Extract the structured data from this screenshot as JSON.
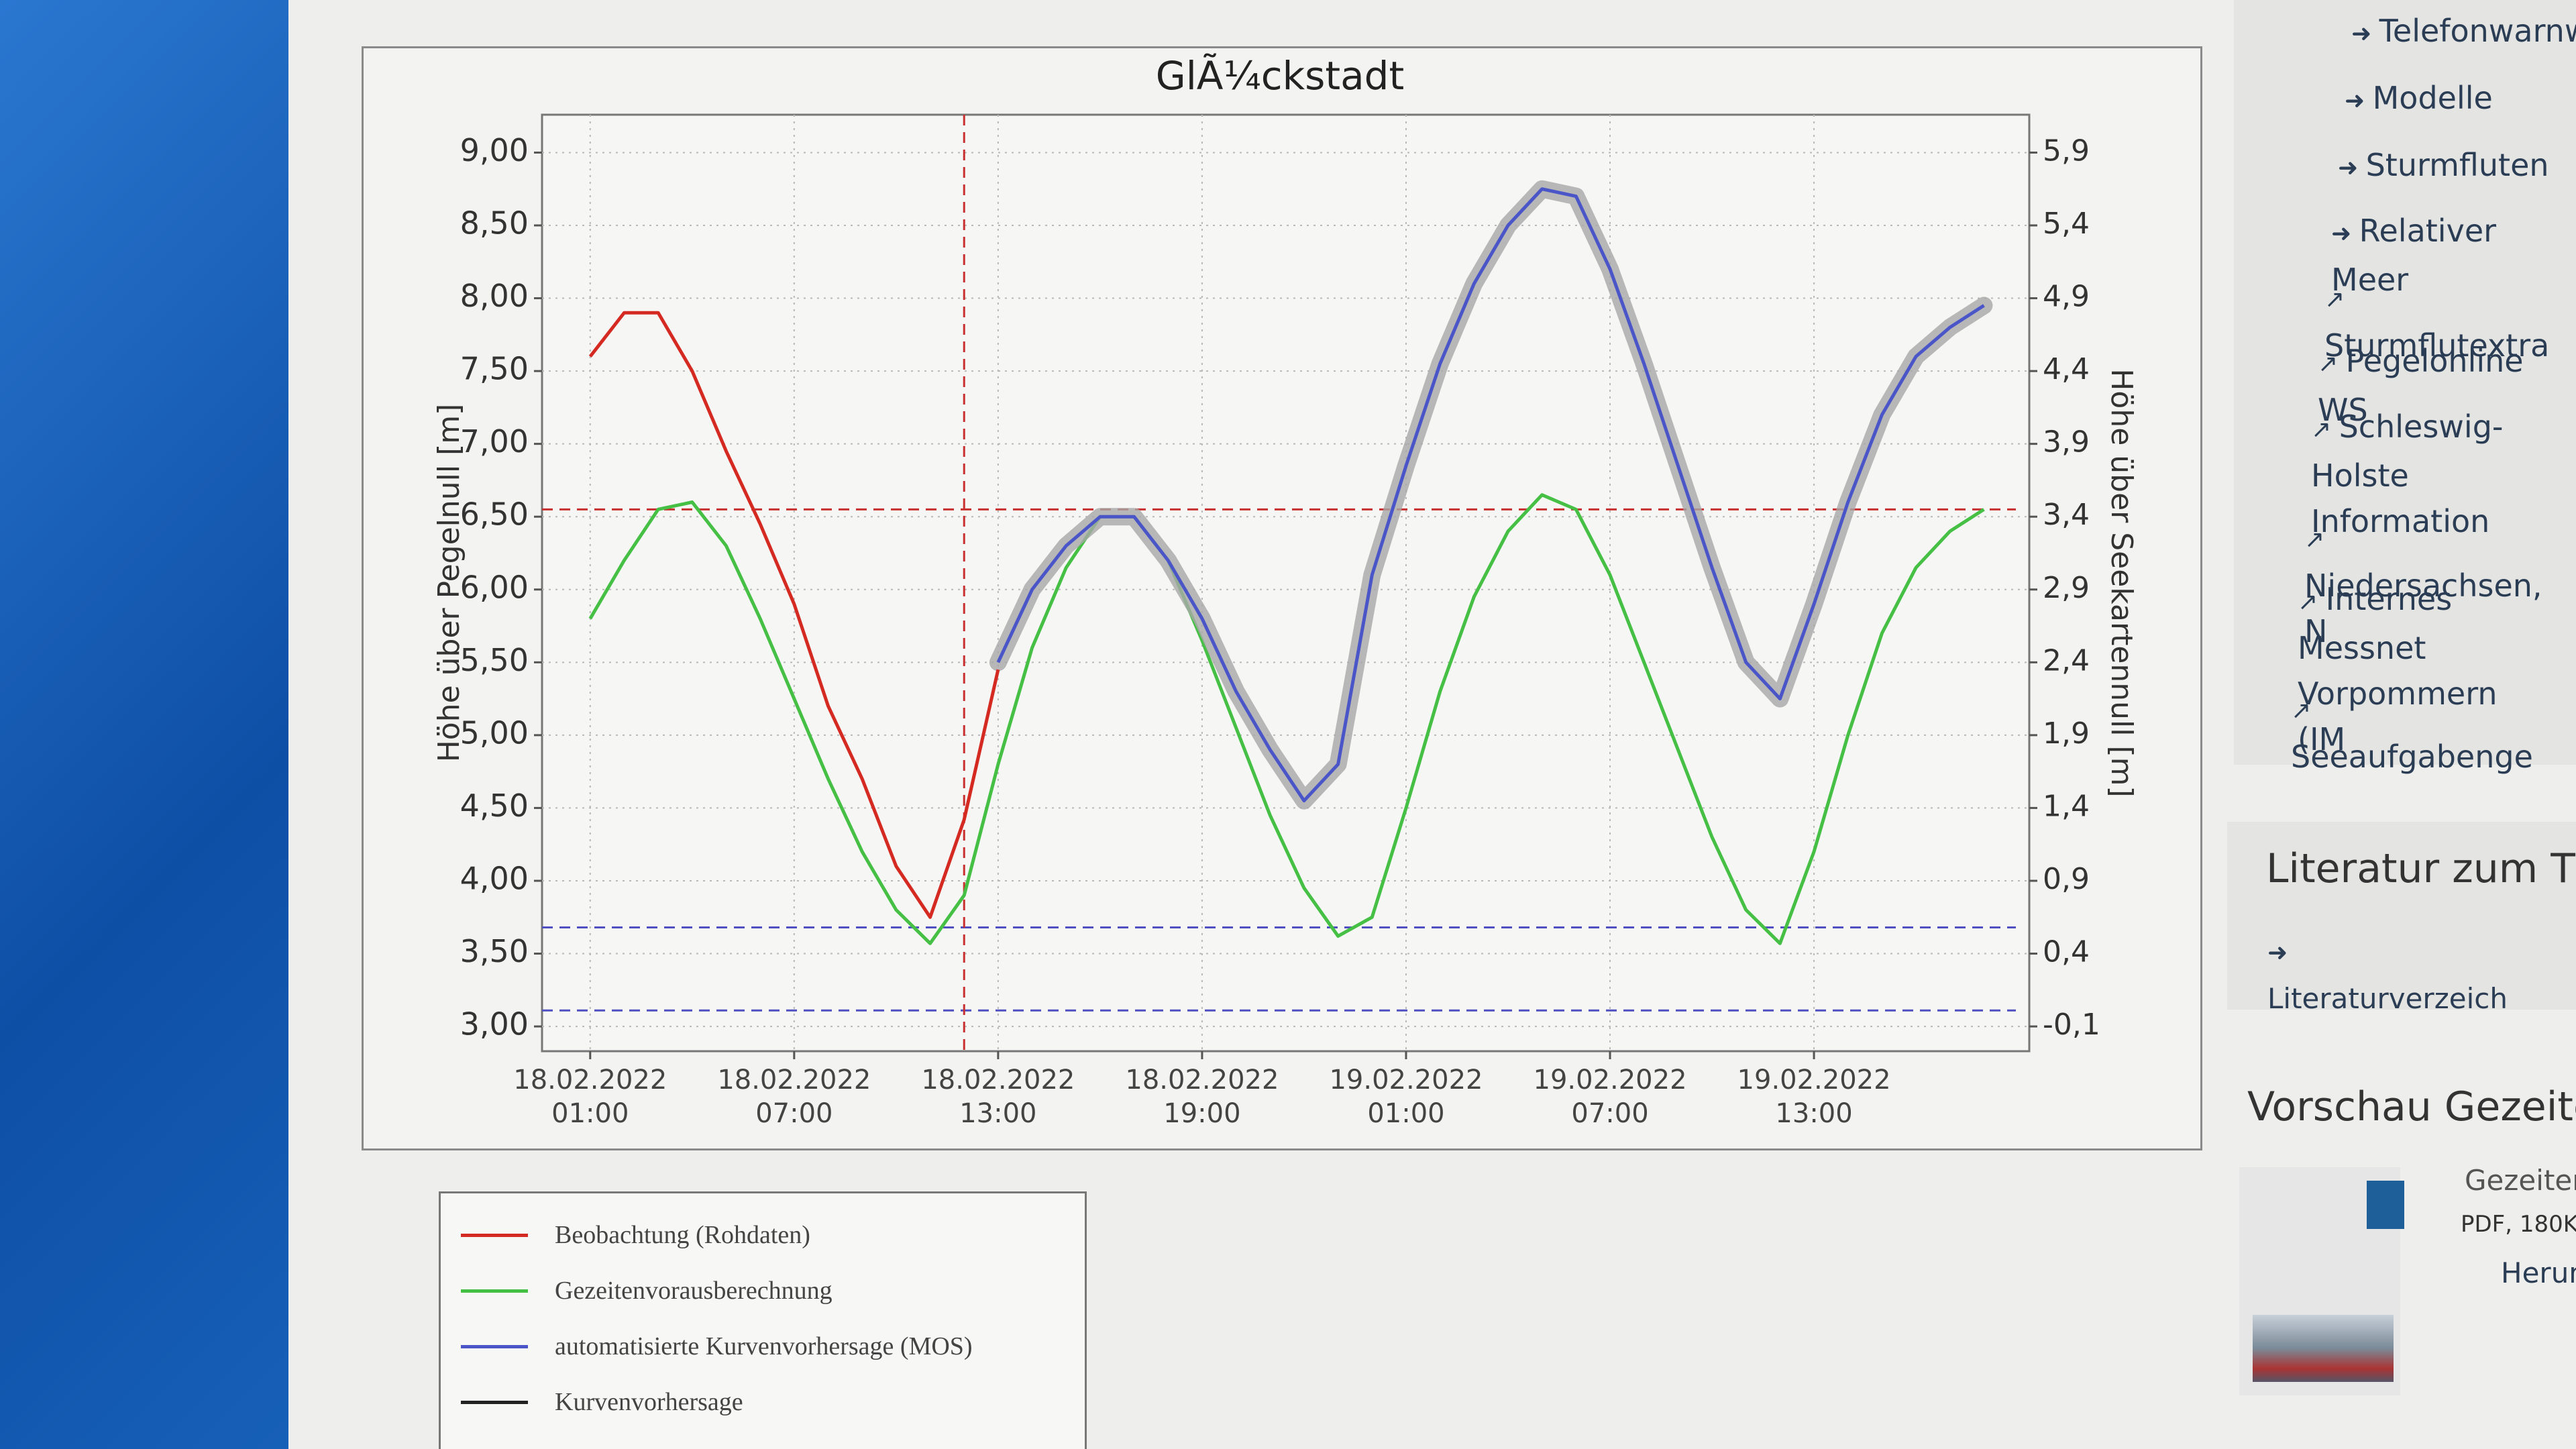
{
  "chart_data": {
    "type": "line",
    "title": "GlÃ¼ckstadt",
    "y_label": "Höhe über Pegelnull [m]",
    "y2_label": "Höhe über Seekartennull [m]",
    "x": [
      "2022-02-18T01:00",
      "2022-02-18T02:00",
      "2022-02-18T03:00",
      "2022-02-18T04:00",
      "2022-02-18T05:00",
      "2022-02-18T06:00",
      "2022-02-18T07:00",
      "2022-02-18T08:00",
      "2022-02-18T09:00",
      "2022-02-18T10:00",
      "2022-02-18T11:00",
      "2022-02-18T12:00",
      "2022-02-18T13:00",
      "2022-02-18T14:00",
      "2022-02-18T15:00",
      "2022-02-18T16:00",
      "2022-02-18T17:00",
      "2022-02-18T18:00",
      "2022-02-18T19:00",
      "2022-02-18T20:00",
      "2022-02-18T21:00",
      "2022-02-18T22:00",
      "2022-02-18T23:00",
      "2022-02-19T00:00",
      "2022-02-19T01:00",
      "2022-02-19T02:00",
      "2022-02-19T03:00",
      "2022-02-19T04:00",
      "2022-02-19T05:00",
      "2022-02-19T06:00",
      "2022-02-19T07:00",
      "2022-02-19T08:00",
      "2022-02-19T09:00",
      "2022-02-19T10:00",
      "2022-02-19T11:00",
      "2022-02-19T12:00",
      "2022-02-19T13:00",
      "2022-02-19T14:00",
      "2022-02-19T15:00",
      "2022-02-19T16:00",
      "2022-02-19T17:00",
      "2022-02-19T18:00"
    ],
    "series": [
      {
        "name": "Beobachtung (Rohdaten)",
        "color": "#d42a22",
        "values": [
          7.6,
          7.9,
          7.9,
          7.5,
          6.95,
          6.45,
          5.9,
          5.2,
          4.7,
          4.1,
          3.75,
          4.42,
          5.45,
          null,
          null,
          null,
          null,
          null,
          null,
          null,
          null,
          null,
          null,
          null,
          null,
          null,
          null,
          null,
          null,
          null,
          null,
          null,
          null,
          null,
          null,
          null,
          null,
          null,
          null,
          null,
          null,
          null
        ]
      },
      {
        "name": "Gezeitenvorausberechnung",
        "color": "#45c045",
        "values": [
          5.8,
          6.2,
          6.55,
          6.6,
          6.3,
          5.8,
          5.25,
          4.7,
          4.2,
          3.8,
          3.57,
          3.9,
          4.8,
          5.6,
          6.15,
          6.5,
          6.5,
          6.2,
          5.65,
          5.05,
          4.45,
          3.95,
          3.62,
          3.75,
          4.5,
          5.3,
          5.95,
          6.4,
          6.65,
          6.55,
          6.1,
          5.5,
          4.9,
          4.3,
          3.8,
          3.57,
          4.2,
          5.0,
          5.7,
          6.15,
          6.4,
          6.55
        ]
      },
      {
        "name": "automatisierte Kurvenvorhersage (MOS)",
        "color": "#4a55c8",
        "band_color": "#a8a8a8",
        "values": [
          null,
          null,
          null,
          null,
          null,
          null,
          null,
          null,
          null,
          null,
          null,
          null,
          5.5,
          6.0,
          6.3,
          6.5,
          6.5,
          6.2,
          5.8,
          5.3,
          4.9,
          4.55,
          4.8,
          6.1,
          6.85,
          7.55,
          8.1,
          8.5,
          8.75,
          8.7,
          8.2,
          7.55,
          6.85,
          6.15,
          5.5,
          5.25,
          5.9,
          6.6,
          7.2,
          7.6,
          7.8,
          7.95
        ]
      },
      {
        "name": "Kurvenvorhersage",
        "color": "#222222",
        "values": [
          null,
          null,
          null,
          null,
          null,
          null,
          null,
          null,
          null,
          null,
          null,
          null,
          null,
          null,
          null,
          null,
          null,
          null,
          null,
          null,
          null,
          null,
          null,
          null,
          null,
          null,
          null,
          null,
          null,
          null,
          null,
          null,
          null,
          null,
          null,
          null,
          null,
          null,
          null,
          null,
          null,
          null
        ]
      }
    ],
    "hlines": [
      {
        "value": 6.55,
        "color": "#c83030"
      },
      {
        "value": 3.68,
        "color": "#5050c0"
      },
      {
        "value": 3.11,
        "color": "#5050c0"
      }
    ],
    "vline": {
      "x": "2022-02-18T12:00",
      "color": "#c83030"
    },
    "xlim": [
      "2022-02-17T23:35",
      "2022-02-19T19:20"
    ],
    "xticks": [
      {
        "value": "2022-02-18T01:00",
        "label": "18.02.2022 01:00"
      },
      {
        "value": "2022-02-18T07:00",
        "label": "18.02.2022 07:00"
      },
      {
        "value": "2022-02-18T13:00",
        "label": "18.02.2022 13:00"
      },
      {
        "value": "2022-02-18T19:00",
        "label": "18.02.2022 19:00"
      },
      {
        "value": "2022-02-19T01:00",
        "label": "19.02.2022 01:00"
      },
      {
        "value": "2022-02-19T07:00",
        "label": "19.02.2022 07:00"
      },
      {
        "value": "2022-02-19T13:00",
        "label": "19.02.2022 13:00"
      }
    ],
    "ylim": [
      2.83,
      9.26
    ],
    "yticks": [
      {
        "value": 3,
        "label": "3,00"
      },
      {
        "value": 3.5,
        "label": "3,50"
      },
      {
        "value": 4,
        "label": "4,00"
      },
      {
        "value": 4.5,
        "label": "4,50"
      },
      {
        "value": 5,
        "label": "5,00"
      },
      {
        "value": 5.5,
        "label": "5,50"
      },
      {
        "value": 6,
        "label": "6,00"
      },
      {
        "value": 6.5,
        "label": "6,50"
      },
      {
        "value": 7,
        "label": "7,00"
      },
      {
        "value": 7.5,
        "label": "7,50"
      },
      {
        "value": 8,
        "label": "8,00"
      },
      {
        "value": 8.5,
        "label": "8,50"
      },
      {
        "value": 9,
        "label": "9,00"
      }
    ],
    "y2lim": [
      -0.27,
      6.16
    ],
    "y2ticks": [
      {
        "value": -0.1,
        "label": "-0,1"
      },
      {
        "value": 0.4,
        "label": "0,4"
      },
      {
        "value": 0.9,
        "label": "0,9"
      },
      {
        "value": 1.4,
        "label": "1,4"
      },
      {
        "value": 1.9,
        "label": "1,9"
      },
      {
        "value": 2.4,
        "label": "2,4"
      },
      {
        "value": 2.9,
        "label": "2,9"
      },
      {
        "value": 3.4,
        "label": "3,4"
      },
      {
        "value": 3.9,
        "label": "3,9"
      },
      {
        "value": 4.4,
        "label": "4,4"
      },
      {
        "value": 4.9,
        "label": "4,9"
      },
      {
        "value": 5.4,
        "label": "5,4"
      },
      {
        "value": 5.9,
        "label": "5,9"
      }
    ],
    "grid": true
  },
  "sidebar": {
    "links": [
      "Telefonwarnw",
      "Modelle",
      "Sturmfluten",
      "Relativer Meer",
      "Sturmflutextra",
      "Pegelonline WS",
      "Schleswig-Holste Information",
      "Niedersachsen, N",
      "Internes Messnet Vorpommern (IM",
      "Seeaufgabengese"
    ],
    "literature": {
      "title": "Literatur zum T",
      "link": "Literaturverzeichnis"
    },
    "preview": {
      "title": "Vorschau Gezeite",
      "file": "Gezeiten",
      "meta": "PDF, 180KB",
      "download": "Herun"
    }
  }
}
